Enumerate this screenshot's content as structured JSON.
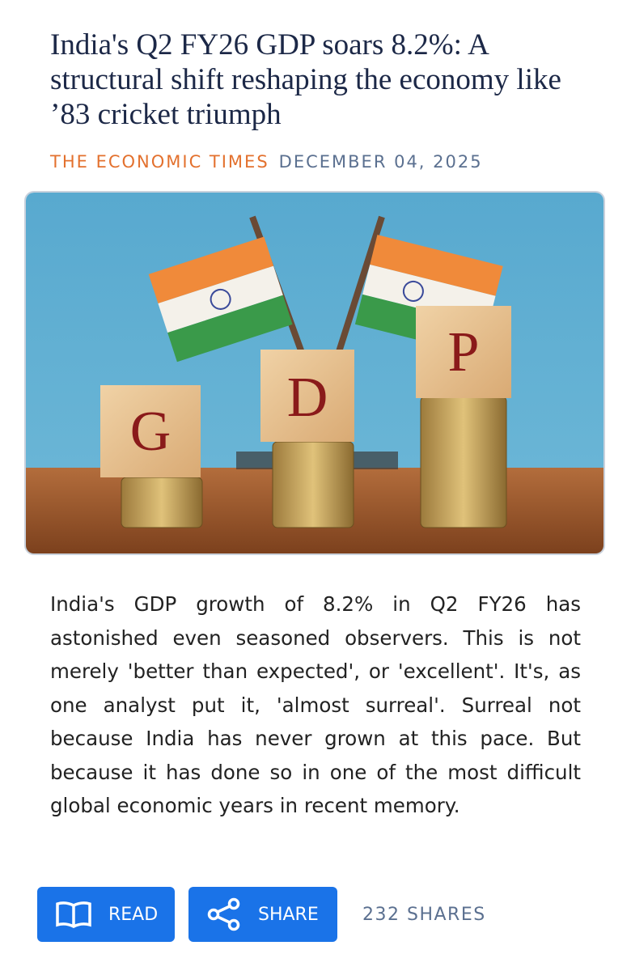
{
  "article": {
    "headline": "India's Q2 FY26 GDP soars 8.2%: A structural shift reshaping the economy like ’83 cricket triumph",
    "source": "THE ECONOMIC TIMES",
    "date": "DECEMBER 04, 2025",
    "image": {
      "blocks": [
        "G",
        "D",
        "P"
      ]
    },
    "body": "India's GDP growth of 8.2% in Q2 FY26 has astonished even seasoned observers. This is not merely 'better than expected', or 'excellent'. It's, as one analyst put it, 'almost surreal'. Surreal not because India has never grown at this pace. But because it has done so in one of the most difficult global economic years in recent memory.",
    "actions": {
      "read": "READ",
      "share": "SHARE",
      "shares_count": "232 SHARES"
    }
  }
}
